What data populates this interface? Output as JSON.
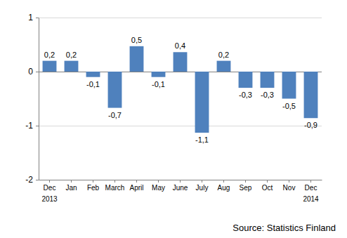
{
  "chart_data": {
    "type": "bar",
    "categories": [
      "Dec",
      "Jan",
      "Feb",
      "March",
      "April",
      "May",
      "June",
      "July",
      "Aug",
      "Sep",
      "Oct",
      "Nov",
      "Dec"
    ],
    "values": [
      0.2,
      0.2,
      -0.1,
      -0.67,
      0.47,
      -0.1,
      0.36,
      -1.13,
      0.2,
      -0.3,
      -0.3,
      -0.5,
      -0.86
    ],
    "value_labels": [
      "0,2",
      "0,2",
      "-0,1",
      "-0,7",
      "0,5",
      "-0,1",
      "0,4",
      "-1,1",
      "0,2",
      "-0,3",
      "-0,3",
      "-0,5",
      "-0,9"
    ],
    "data_labels": true,
    "color": "#4f81bd",
    "ylim": [
      -2,
      1
    ],
    "yticks": [
      -2,
      -1,
      0,
      1
    ],
    "grid": true,
    "annotations": [
      {
        "text": "2013",
        "category": 0
      },
      {
        "text": "2014",
        "category": 12
      },
      {
        "text": "Source: Statistics Finland"
      }
    ]
  }
}
